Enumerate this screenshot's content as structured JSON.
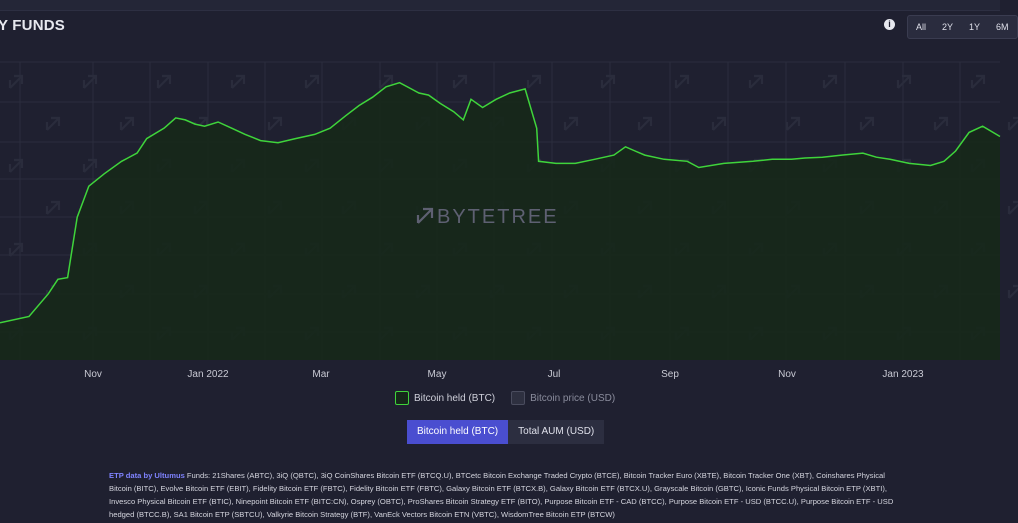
{
  "header": {
    "title": "Y FUNDS",
    "info_icon": "info-icon",
    "ranges": [
      "All",
      "2Y",
      "1Y",
      "6M"
    ]
  },
  "chart_data": {
    "type": "area",
    "x_tick_labels": [
      "Nov",
      "Jan 2022",
      "Mar",
      "May",
      "Jul",
      "Sep",
      "Nov",
      "Jan 2023"
    ],
    "watermark": "BYTETREE",
    "grid": true,
    "line_color": "#3fd43b",
    "fill_color": "#16281a",
    "series": [
      {
        "name": "Bitcoin held (BTC)",
        "x": [
          "2021-09-10",
          "2021-09-25",
          "2021-10-05",
          "2021-10-10",
          "2021-10-15",
          "2021-10-20",
          "2021-10-26",
          "2021-11-03",
          "2021-11-12",
          "2021-11-20",
          "2021-11-25",
          "2021-12-04",
          "2021-12-10",
          "2021-12-15",
          "2021-12-20",
          "2021-12-25",
          "2022-01-01",
          "2022-01-08",
          "2022-01-15",
          "2022-01-23",
          "2022-02-01",
          "2022-02-10",
          "2022-02-20",
          "2022-02-28",
          "2022-03-08",
          "2022-03-15",
          "2022-03-22",
          "2022-03-29",
          "2022-04-05",
          "2022-04-11",
          "2022-04-15",
          "2022-04-20",
          "2022-04-26",
          "2022-05-03",
          "2022-05-08",
          "2022-05-12",
          "2022-05-18",
          "2022-05-25",
          "2022-06-01",
          "2022-06-09",
          "2022-06-15",
          "2022-06-16",
          "2022-06-25",
          "2022-07-05",
          "2022-07-15",
          "2022-07-25",
          "2022-07-31",
          "2022-08-05",
          "2022-08-10",
          "2022-08-20",
          "2022-09-01",
          "2022-09-07",
          "2022-09-20",
          "2022-10-05",
          "2022-10-15",
          "2022-10-25",
          "2022-11-01",
          "2022-11-10",
          "2022-11-20",
          "2022-12-01",
          "2022-12-08",
          "2022-12-15",
          "2022-12-25",
          "2023-01-05",
          "2023-01-12",
          "2023-01-18",
          "2023-01-25",
          "2023-02-01",
          "2023-02-10"
        ],
        "values": [
          9000,
          10500,
          16000,
          19500,
          19900,
          34500,
          42000,
          45000,
          48000,
          50000,
          53500,
          56000,
          58500,
          58000,
          57000,
          56500,
          57500,
          56000,
          54500,
          53000,
          52500,
          53500,
          54500,
          56000,
          59000,
          61500,
          63500,
          66000,
          67000,
          65500,
          64500,
          64000,
          62000,
          60000,
          58000,
          63000,
          61000,
          63000,
          64500,
          65500,
          56000,
          48000,
          47500,
          47500,
          48500,
          49500,
          51500,
          50500,
          49500,
          48500,
          48000,
          46500,
          47500,
          48000,
          48500,
          48500,
          48800,
          49000,
          49500,
          50000,
          49000,
          48500,
          47500,
          47000,
          48000,
          50500,
          55000,
          56500,
          54000
        ]
      }
    ],
    "ylim": [
      0,
      72000
    ],
    "xlim": [
      "2021-09-10",
      "2023-02-10"
    ]
  },
  "legend": {
    "btc_label": "Bitcoin held (BTC)",
    "price_label": "Bitcoin price (USD)"
  },
  "toggle": {
    "btc_label": "Bitcoin held (BTC)",
    "aum_label": "Total AUM (USD)"
  },
  "footer": {
    "link_text": "ETP data by Ultumus",
    "funds_text": " Funds: 21Shares (ABTC), 3iQ (QBTC), 3iQ CoinShares Bitcoin ETF (BTCQ.U), BTCetc Bitcoin Exchange Traded Crypto (BTCE), Bitcoin Tracker Euro (XBTE), Bitcoin Tracker One (XBT), Coinshares Physical Bitcoin (BITC), Evolve Bitcoin ETF (EBIT), Fidelity Bitcoin ETF (FBTC), Fidelity Bitcoin ETF (FBTC), Galaxy Bitcoin ETF (BTCX.B), Galaxy Bitcoin ETF (BTCX.U), Grayscale Bitcoin (GBTC), Iconic Funds Physical Bitcoin ETP (XBTI), Invesco Physical Bitcoin ETF (BTIC), Ninepoint Bitcoin ETF (BITC:CN), Osprey (OBTC), ProShares Bitcoin Strategy ETF (BITO), Purpose Bitcoin ETF - CAD (BTCC), Purpose Bitcoin ETF - USD (BTCC.U), Purpose Bitcoin ETF - USD hedged (BTCC.B), SA1 Bitcoin ETP (SBTCU), Valkyrie Bitcoin Strategy (BTF), VanEck Vectors Bitcoin ETN (VBTC), WisdomTree Bitcoin ETP (BTCW)"
  }
}
